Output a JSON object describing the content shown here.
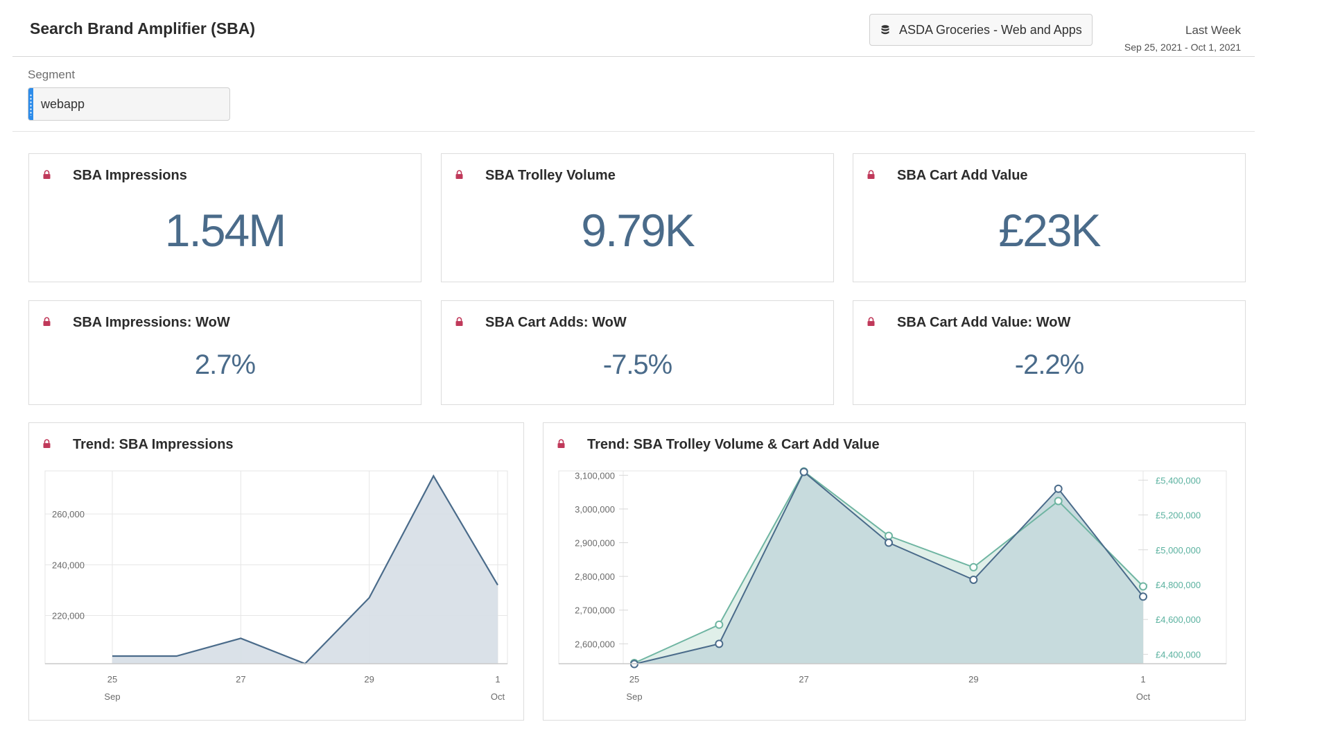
{
  "header": {
    "title": "Search Brand Amplifier (SBA)",
    "datasource": "ASDA Groceries - Web and Apps",
    "date_label": "Last Week",
    "date_range": "Sep 25, 2021 - Oct 1, 2021"
  },
  "segment": {
    "label": "Segment",
    "value": "webapp"
  },
  "cards": {
    "impressions": {
      "title": "SBA Impressions",
      "value": "1.54M"
    },
    "trolley": {
      "title": "SBA Trolley Volume",
      "value": "9.79K"
    },
    "cart_value": {
      "title": "SBA Cart Add Value",
      "value": "£23K"
    },
    "impressions_wow": {
      "title": "SBA Impressions: WoW",
      "value": "2.7%"
    },
    "cart_adds_wow": {
      "title": "SBA Cart Adds: WoW",
      "value": "-7.5%"
    },
    "cart_value_wow": {
      "title": "SBA Cart Add Value: WoW",
      "value": "-2.2%"
    }
  },
  "colors": {
    "accent_blue": "#4a6b8a",
    "lock_red": "#c0395a",
    "teal": "#6fb5a2",
    "segment_blue": "#2d8cea"
  },
  "chart_data": [
    {
      "type": "area",
      "title": "Trend: SBA Impressions",
      "x": [
        "Sep 25",
        "Sep 26",
        "Sep 27",
        "Sep 28",
        "Sep 29",
        "Sep 30",
        "Oct 1"
      ],
      "x_tick_labels": [
        {
          "day": "25",
          "month": "Sep"
        },
        {
          "day": "27",
          "month": ""
        },
        {
          "day": "29",
          "month": ""
        },
        {
          "day": "1",
          "month": "Oct"
        }
      ],
      "series": [
        {
          "values": [
            204000,
            204000,
            211000,
            201000,
            227000,
            275000,
            232000
          ]
        }
      ],
      "y_ticks": [
        220000,
        240000,
        260000
      ],
      "y_tick_labels": [
        "220,000",
        "240,000",
        "260,000"
      ],
      "ylim": [
        201000,
        277000
      ],
      "grid": true
    },
    {
      "type": "area",
      "title": "Trend: SBA Trolley Volume & Cart Add Value",
      "x": [
        "Sep 25",
        "Sep 26",
        "Sep 27",
        "Sep 28",
        "Sep 29",
        "Sep 30",
        "Oct 1"
      ],
      "x_tick_labels": [
        {
          "day": "25",
          "month": "Sep"
        },
        {
          "day": "27",
          "month": ""
        },
        {
          "day": "29",
          "month": ""
        },
        {
          "day": "1",
          "month": "Oct"
        }
      ],
      "series": [
        {
          "axis": "left",
          "values": [
            2540000,
            2600000,
            3110000,
            2900000,
            2790000,
            3060000,
            2740000
          ]
        },
        {
          "axis": "right",
          "values": [
            4350000,
            4570000,
            5450000,
            5080000,
            4900000,
            5280000,
            4790000
          ]
        }
      ],
      "y_left_ticks": [
        2600000,
        2700000,
        2800000,
        2900000,
        3000000,
        3100000
      ],
      "y_left_tick_labels": [
        "2,600,000",
        "2,700,000",
        "2,800,000",
        "2,900,000",
        "3,000,000",
        "3,100,000"
      ],
      "y_left_lim": [
        2541000,
        3113000
      ],
      "y_right_ticks": [
        4400000,
        4600000,
        4800000,
        5000000,
        5200000,
        5400000
      ],
      "y_right_tick_labels": [
        "£4,400,000",
        "£4,600,000",
        "£4,800,000",
        "£5,000,000",
        "£5,200,000",
        "£5,400,000"
      ],
      "y_right_lim": [
        4346000,
        5453000
      ],
      "grid": true
    }
  ]
}
